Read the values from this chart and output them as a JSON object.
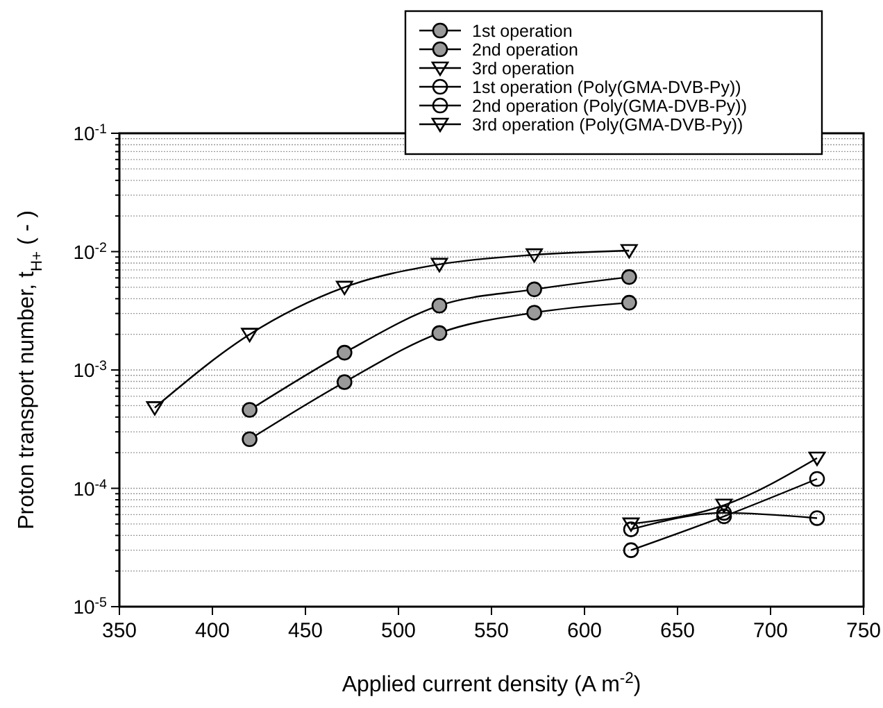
{
  "chart_data": {
    "type": "line",
    "xlabel": "Applied current density (A m$^{-2}$)",
    "ylabel": "Proton transport number, t$_{H+}$ ( - )",
    "log": "y",
    "xlim": [
      350,
      750
    ],
    "xticks": [
      350,
      400,
      450,
      500,
      550,
      600,
      650,
      700,
      750
    ],
    "ylim": [
      1e-05,
      0.1
    ],
    "yticks": [
      {
        "value": 1e-05,
        "label": "10$^{-5}$"
      },
      {
        "value": 0.0001,
        "label": "10$^{-4}$"
      },
      {
        "value": 0.001,
        "label": "10$^{-3}$"
      },
      {
        "value": 0.01,
        "label": "10$^{-2}$"
      },
      {
        "value": 0.1,
        "label": "10$^{-1}$"
      }
    ],
    "grid": "y",
    "legend": "top",
    "series": [
      {
        "name": "1st operation",
        "color": "#9a9a9a",
        "marker": "circle",
        "x": [
          420,
          471,
          522,
          573,
          624
        ],
        "values": [
          0.00026,
          0.00079,
          0.00205,
          0.00305,
          0.0037
        ]
      },
      {
        "name": "2nd operation",
        "color": "#9a9a9a",
        "marker": "circle",
        "x": [
          420,
          471,
          522,
          573,
          624
        ],
        "values": [
          0.00046,
          0.0014,
          0.0035,
          0.0048,
          0.0061
        ]
      },
      {
        "name": "3rd operation",
        "color": "#000000",
        "marker": "triangle",
        "x": [
          369,
          420,
          471,
          522,
          573,
          624
        ],
        "values": [
          0.00048,
          0.002,
          0.005,
          0.0078,
          0.0094,
          0.0102
        ]
      },
      {
        "name": "1st operation (Poly(GMA-DVB-Py))",
        "color": "#000000",
        "marker": "circle",
        "x": [
          625,
          675,
          725
        ],
        "values": [
          3e-05,
          5.8e-05,
          0.00012
        ]
      },
      {
        "name": "2nd operation (Poly(GMA-DVB-Py))",
        "color": "#000000",
        "marker": "circle",
        "x": [
          625,
          675,
          725
        ],
        "values": [
          4.5e-05,
          6.2e-05,
          5.6e-05
        ]
      },
      {
        "name": "3rd operation (Poly(GMA-DVB-Py))",
        "color": "#000000",
        "marker": "triangle",
        "x": [
          625,
          675,
          725
        ],
        "values": [
          5e-05,
          7.2e-05,
          0.00018
        ]
      }
    ]
  }
}
